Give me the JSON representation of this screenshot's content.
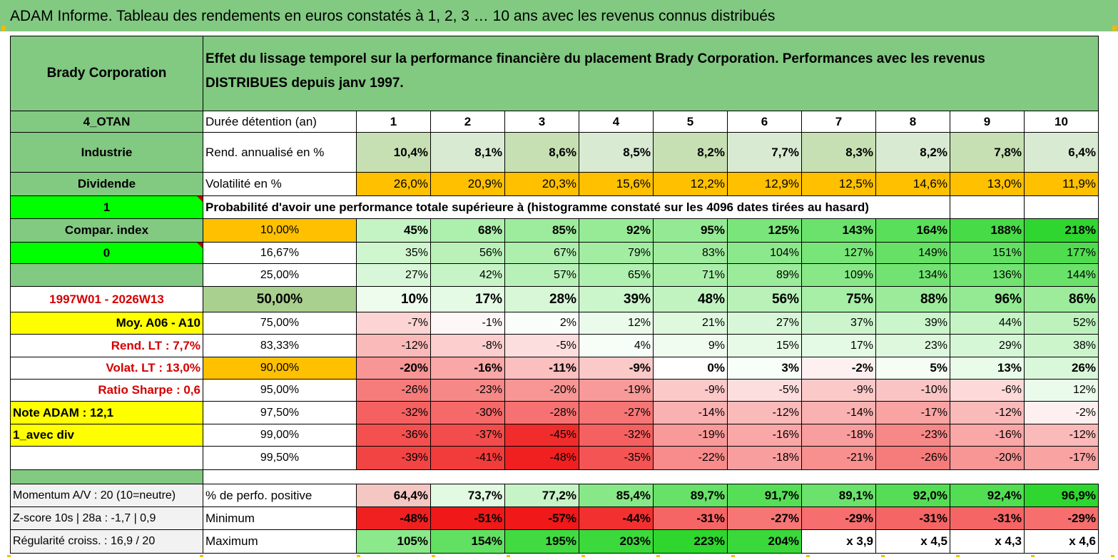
{
  "title": "ADAM Informe. Tableau des rendements en euros constatés à 1, 2, 3 … 10 ans avec les revenus connus distribués",
  "colors": {
    "header_green": "#82c982",
    "orange": "#ffc000",
    "yellow": "#ffff00",
    "bright_green": "#00ff00",
    "red_text": "#d40000"
  },
  "header": {
    "company": "Brady Corporation",
    "description_line1": "Effet du lissage temporel sur la performance financière du placement Brady Corporation. Performances avec les revenus",
    "description_line2": "DISTRIBUES depuis janv 1997."
  },
  "left_labels": [
    "4_OTAN",
    "Industrie",
    "Dividende",
    "1",
    "Compar. index",
    "0",
    "",
    "1997W01 - 2026W13",
    "Moy. A06 - A10",
    "Rend. LT :   7,7%",
    "Volat. LT :   13,0%",
    "Ratio Sharpe :    0,6",
    "Note ADAM : 12,1",
    "1_avec div",
    ""
  ],
  "row_labels": {
    "duration": "Durée détention (an)",
    "rend": "Rend. annualisé en %",
    "vol": "Volatilité en %"
  },
  "years": [
    "1",
    "2",
    "3",
    "4",
    "5",
    "6",
    "7",
    "8",
    "9",
    "10"
  ],
  "rend": [
    "10,4%",
    "8,1%",
    "8,6%",
    "8,5%",
    "8,2%",
    "7,7%",
    "8,3%",
    "8,2%",
    "7,8%",
    "6,4%"
  ],
  "vol": [
    "26,0%",
    "20,9%",
    "20,3%",
    "15,6%",
    "12,2%",
    "12,9%",
    "12,5%",
    "14,6%",
    "13,0%",
    "11,9%"
  ],
  "prob_title": "Probabilité d'avoir une performance totale supérieure à (histogramme constaté sur les 4096 dates tirées au hasard)",
  "percentiles": [
    {
      "p": "10,00%",
      "v": [
        "45%",
        "68%",
        "85%",
        "92%",
        "95%",
        "125%",
        "143%",
        "164%",
        "188%",
        "218%"
      ]
    },
    {
      "p": "16,67%",
      "v": [
        "35%",
        "56%",
        "67%",
        "79%",
        "83%",
        "104%",
        "127%",
        "149%",
        "151%",
        "177%"
      ]
    },
    {
      "p": "25,00%",
      "v": [
        "27%",
        "42%",
        "57%",
        "65%",
        "71%",
        "89%",
        "109%",
        "134%",
        "136%",
        "144%"
      ]
    },
    {
      "p": "50,00%",
      "v": [
        "10%",
        "17%",
        "28%",
        "39%",
        "48%",
        "56%",
        "75%",
        "88%",
        "96%",
        "86%"
      ]
    },
    {
      "p": "75,00%",
      "v": [
        "-7%",
        "-1%",
        "2%",
        "12%",
        "21%",
        "27%",
        "37%",
        "39%",
        "44%",
        "52%"
      ]
    },
    {
      "p": "83,33%",
      "v": [
        "-12%",
        "-8%",
        "-5%",
        "4%",
        "9%",
        "15%",
        "17%",
        "23%",
        "29%",
        "38%"
      ]
    },
    {
      "p": "90,00%",
      "v": [
        "-20%",
        "-16%",
        "-11%",
        "-9%",
        "0%",
        "3%",
        "-2%",
        "5%",
        "13%",
        "26%"
      ]
    },
    {
      "p": "95,00%",
      "v": [
        "-26%",
        "-23%",
        "-20%",
        "-19%",
        "-9%",
        "-5%",
        "-9%",
        "-10%",
        "-6%",
        "12%"
      ]
    },
    {
      "p": "97,50%",
      "v": [
        "-32%",
        "-30%",
        "-28%",
        "-27%",
        "-14%",
        "-12%",
        "-14%",
        "-17%",
        "-12%",
        "-2%"
      ]
    },
    {
      "p": "99,00%",
      "v": [
        "-36%",
        "-37%",
        "-45%",
        "-32%",
        "-19%",
        "-16%",
        "-18%",
        "-23%",
        "-16%",
        "-12%"
      ]
    },
    {
      "p": "99,50%",
      "v": [
        "-39%",
        "-41%",
        "-48%",
        "-35%",
        "-22%",
        "-18%",
        "-21%",
        "-26%",
        "-20%",
        "-17%"
      ]
    }
  ],
  "bottom": [
    {
      "label": "Momentum A/V : 20 (10=neutre)",
      "name": "% de perfo. positive",
      "v": [
        "64,4%",
        "73,7%",
        "77,2%",
        "85,4%",
        "89,7%",
        "91,7%",
        "89,1%",
        "92,0%",
        "92,4%",
        "96,9%"
      ]
    },
    {
      "label": "Z-score 10s | 28a : -1,7 | 0,9",
      "name": "Minimum",
      "v": [
        "-48%",
        "-51%",
        "-57%",
        "-44%",
        "-31%",
        "-27%",
        "-29%",
        "-31%",
        "-31%",
        "-29%"
      ]
    },
    {
      "label": "Régularité croiss. : 16,9 / 20",
      "name": "Maximum",
      "v": [
        "105%",
        "154%",
        "195%",
        "203%",
        "223%",
        "204%",
        "x 3,9",
        "x 4,5",
        "x 4,3",
        "x 4,6"
      ]
    }
  ],
  "rend_bg": [
    "#c6e0b4",
    "#ffffff",
    "#c6e0b4",
    "#ffffff",
    "#c6e0b4",
    "#ffffff",
    "#c6e0b4",
    "#ffffff",
    "#c6e0b4",
    "#ffffff"
  ],
  "vol_bg": [
    "#ffc000",
    "#ffffff",
    "#ffc000",
    "#ffffff",
    "#ffc000",
    "#ffffff",
    "#ffc000",
    "#ffffff",
    "#ffc000",
    "#ffffff"
  ]
}
